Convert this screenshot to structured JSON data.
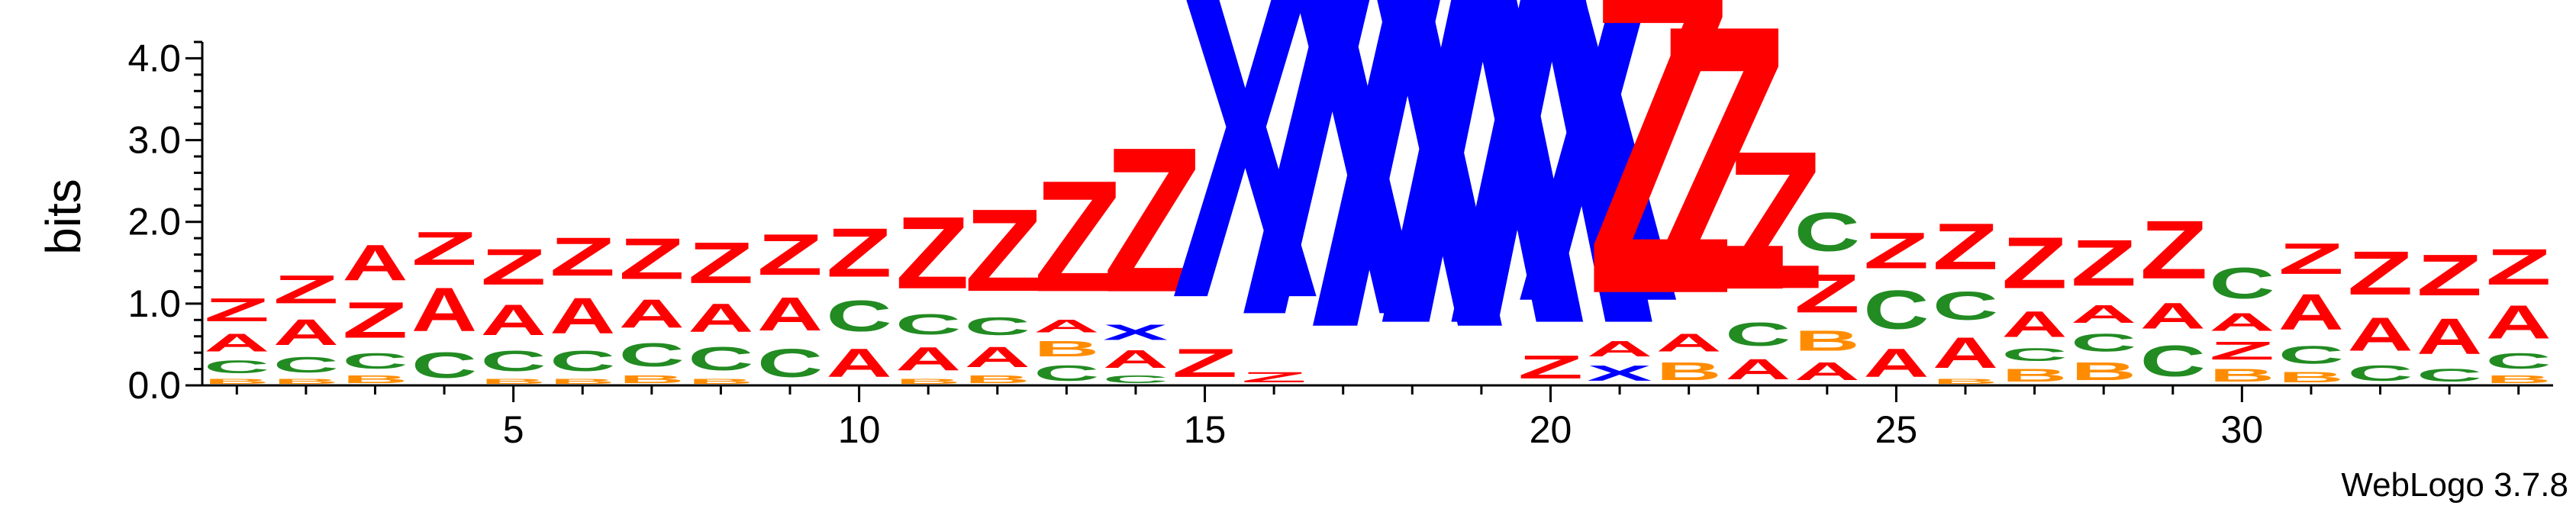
{
  "chart_data": {
    "type": "sequence-logo",
    "ylabel": "bits",
    "ylim": [
      0,
      4.2
    ],
    "y_ticks": [
      "0.0",
      "1.0",
      "2.0",
      "3.0",
      "4.0"
    ],
    "x_ticks": [
      "5",
      "10",
      "15",
      "20",
      "25",
      "30"
    ],
    "x_tick_positions": [
      5,
      10,
      15,
      20,
      25,
      30
    ],
    "positions": [
      1,
      34
    ],
    "footer": "WebLogo 3.7.8",
    "colors": {
      "Z": "#ff0000",
      "A": "#ff0000",
      "X": "#0000ff",
      "C": "#228b22",
      "B": "#ff8c00",
      "O": "#ff0000",
      "other": "#800080"
    },
    "stacks": [
      [
        [
          "B",
          0.1
        ],
        [
          "C",
          0.25
        ],
        [
          "A",
          0.35
        ],
        [
          "Z",
          0.45
        ]
      ],
      [
        [
          "B",
          0.1
        ],
        [
          "C",
          0.3
        ],
        [
          "A",
          0.5
        ],
        [
          "Z",
          0.55
        ]
      ],
      [
        [
          "B",
          0.15
        ],
        [
          "C",
          0.3
        ],
        [
          "Z",
          0.7
        ],
        [
          "A",
          0.7
        ]
      ],
      [
        [
          "C",
          0.5
        ],
        [
          "A",
          0.85
        ],
        [
          "Z",
          0.65
        ]
      ],
      [
        [
          "B",
          0.1
        ],
        [
          "C",
          0.4
        ],
        [
          "A",
          0.6
        ],
        [
          "Z",
          0.7
        ]
      ],
      [
        [
          "B",
          0.1
        ],
        [
          "C",
          0.4
        ],
        [
          "A",
          0.7
        ],
        [
          "Z",
          0.75
        ]
      ],
      [
        [
          "B",
          0.15
        ],
        [
          "C",
          0.45
        ],
        [
          "A",
          0.55
        ],
        [
          "Z",
          0.8
        ]
      ],
      [
        [
          "B",
          0.1
        ],
        [
          "C",
          0.45
        ],
        [
          "A",
          0.55
        ],
        [
          "Z",
          0.8
        ]
      ],
      [
        [
          "C",
          0.55
        ],
        [
          "A",
          0.65
        ],
        [
          "Z",
          0.8
        ]
      ],
      [
        [
          "A",
          0.55
        ],
        [
          "C",
          0.6
        ],
        [
          "Z",
          0.95
        ]
      ],
      [
        [
          "B",
          0.1
        ],
        [
          "A",
          0.45
        ],
        [
          "C",
          0.4
        ],
        [
          "Z",
          1.25
        ]
      ],
      [
        [
          "B",
          0.15
        ],
        [
          "A",
          0.4
        ],
        [
          "C",
          0.35
        ],
        [
          "Z",
          1.35
        ]
      ],
      [
        [
          "C",
          0.3
        ],
        [
          "B",
          0.3
        ],
        [
          "A",
          0.25
        ],
        [
          "Z",
          1.6
        ]
      ],
      [
        [
          "C",
          0.15
        ],
        [
          "A",
          0.35
        ],
        [
          "X",
          0.3
        ],
        [
          "Z",
          1.85
        ]
      ],
      [
        [
          "Z",
          0.55
        ],
        [
          "X",
          2.85
        ]
      ],
      [
        [
          "Z",
          0.2
        ],
        [
          "X",
          3.6
        ]
      ],
      [
        [
          "X",
          3.85
        ]
      ],
      [
        [
          "X",
          4.1
        ]
      ],
      [
        [
          "X",
          4.1
        ]
      ],
      [
        [
          "Z",
          0.45
        ],
        [
          "X",
          3.15
        ]
      ],
      [
        [
          "X",
          0.3
        ],
        [
          "A",
          0.3
        ],
        [
          "Z",
          2.85
        ]
      ],
      [
        [
          "B",
          0.35
        ],
        [
          "A",
          0.35
        ],
        [
          "Z",
          2.55
        ]
      ],
      [
        [
          "A",
          0.4
        ],
        [
          "C",
          0.45
        ],
        [
          "Z",
          1.8
        ]
      ],
      [
        [
          "A",
          0.35
        ],
        [
          "B",
          0.4
        ],
        [
          "Z",
          0.75
        ],
        [
          "C",
          0.75
        ]
      ],
      [
        [
          "A",
          0.55
        ],
        [
          "C",
          0.75
        ],
        [
          "Z",
          0.7
        ]
      ],
      [
        [
          "B",
          0.1
        ],
        [
          "A",
          0.6
        ],
        [
          "C",
          0.55
        ],
        [
          "Z",
          0.9
        ]
      ],
      [
        [
          "B",
          0.25
        ],
        [
          "C",
          0.25
        ],
        [
          "A",
          0.5
        ],
        [
          "Z",
          1.0
        ]
      ],
      [
        [
          "B",
          0.35
        ],
        [
          "C",
          0.35
        ],
        [
          "A",
          0.35
        ],
        [
          "Z",
          0.9
        ]
      ],
      [
        [
          "C",
          0.6
        ],
        [
          "A",
          0.5
        ],
        [
          "Z",
          1.1
        ]
      ],
      [
        [
          "B",
          0.25
        ],
        [
          "Z",
          0.35
        ],
        [
          "A",
          0.35
        ],
        [
          "C",
          0.6
        ]
      ],
      [
        [
          "B",
          0.2
        ],
        [
          "C",
          0.35
        ],
        [
          "A",
          0.7
        ],
        [
          "Z",
          0.6
        ]
      ],
      [
        [
          "C",
          0.3
        ],
        [
          "A",
          0.65
        ],
        [
          "Z",
          0.85
        ]
      ],
      [
        [
          "C",
          0.25
        ],
        [
          "A",
          0.7
        ],
        [
          "Z",
          0.8
        ]
      ],
      [
        [
          "B",
          0.15
        ],
        [
          "C",
          0.3
        ],
        [
          "A",
          0.65
        ],
        [
          "Z",
          0.7
        ]
      ]
    ]
  }
}
